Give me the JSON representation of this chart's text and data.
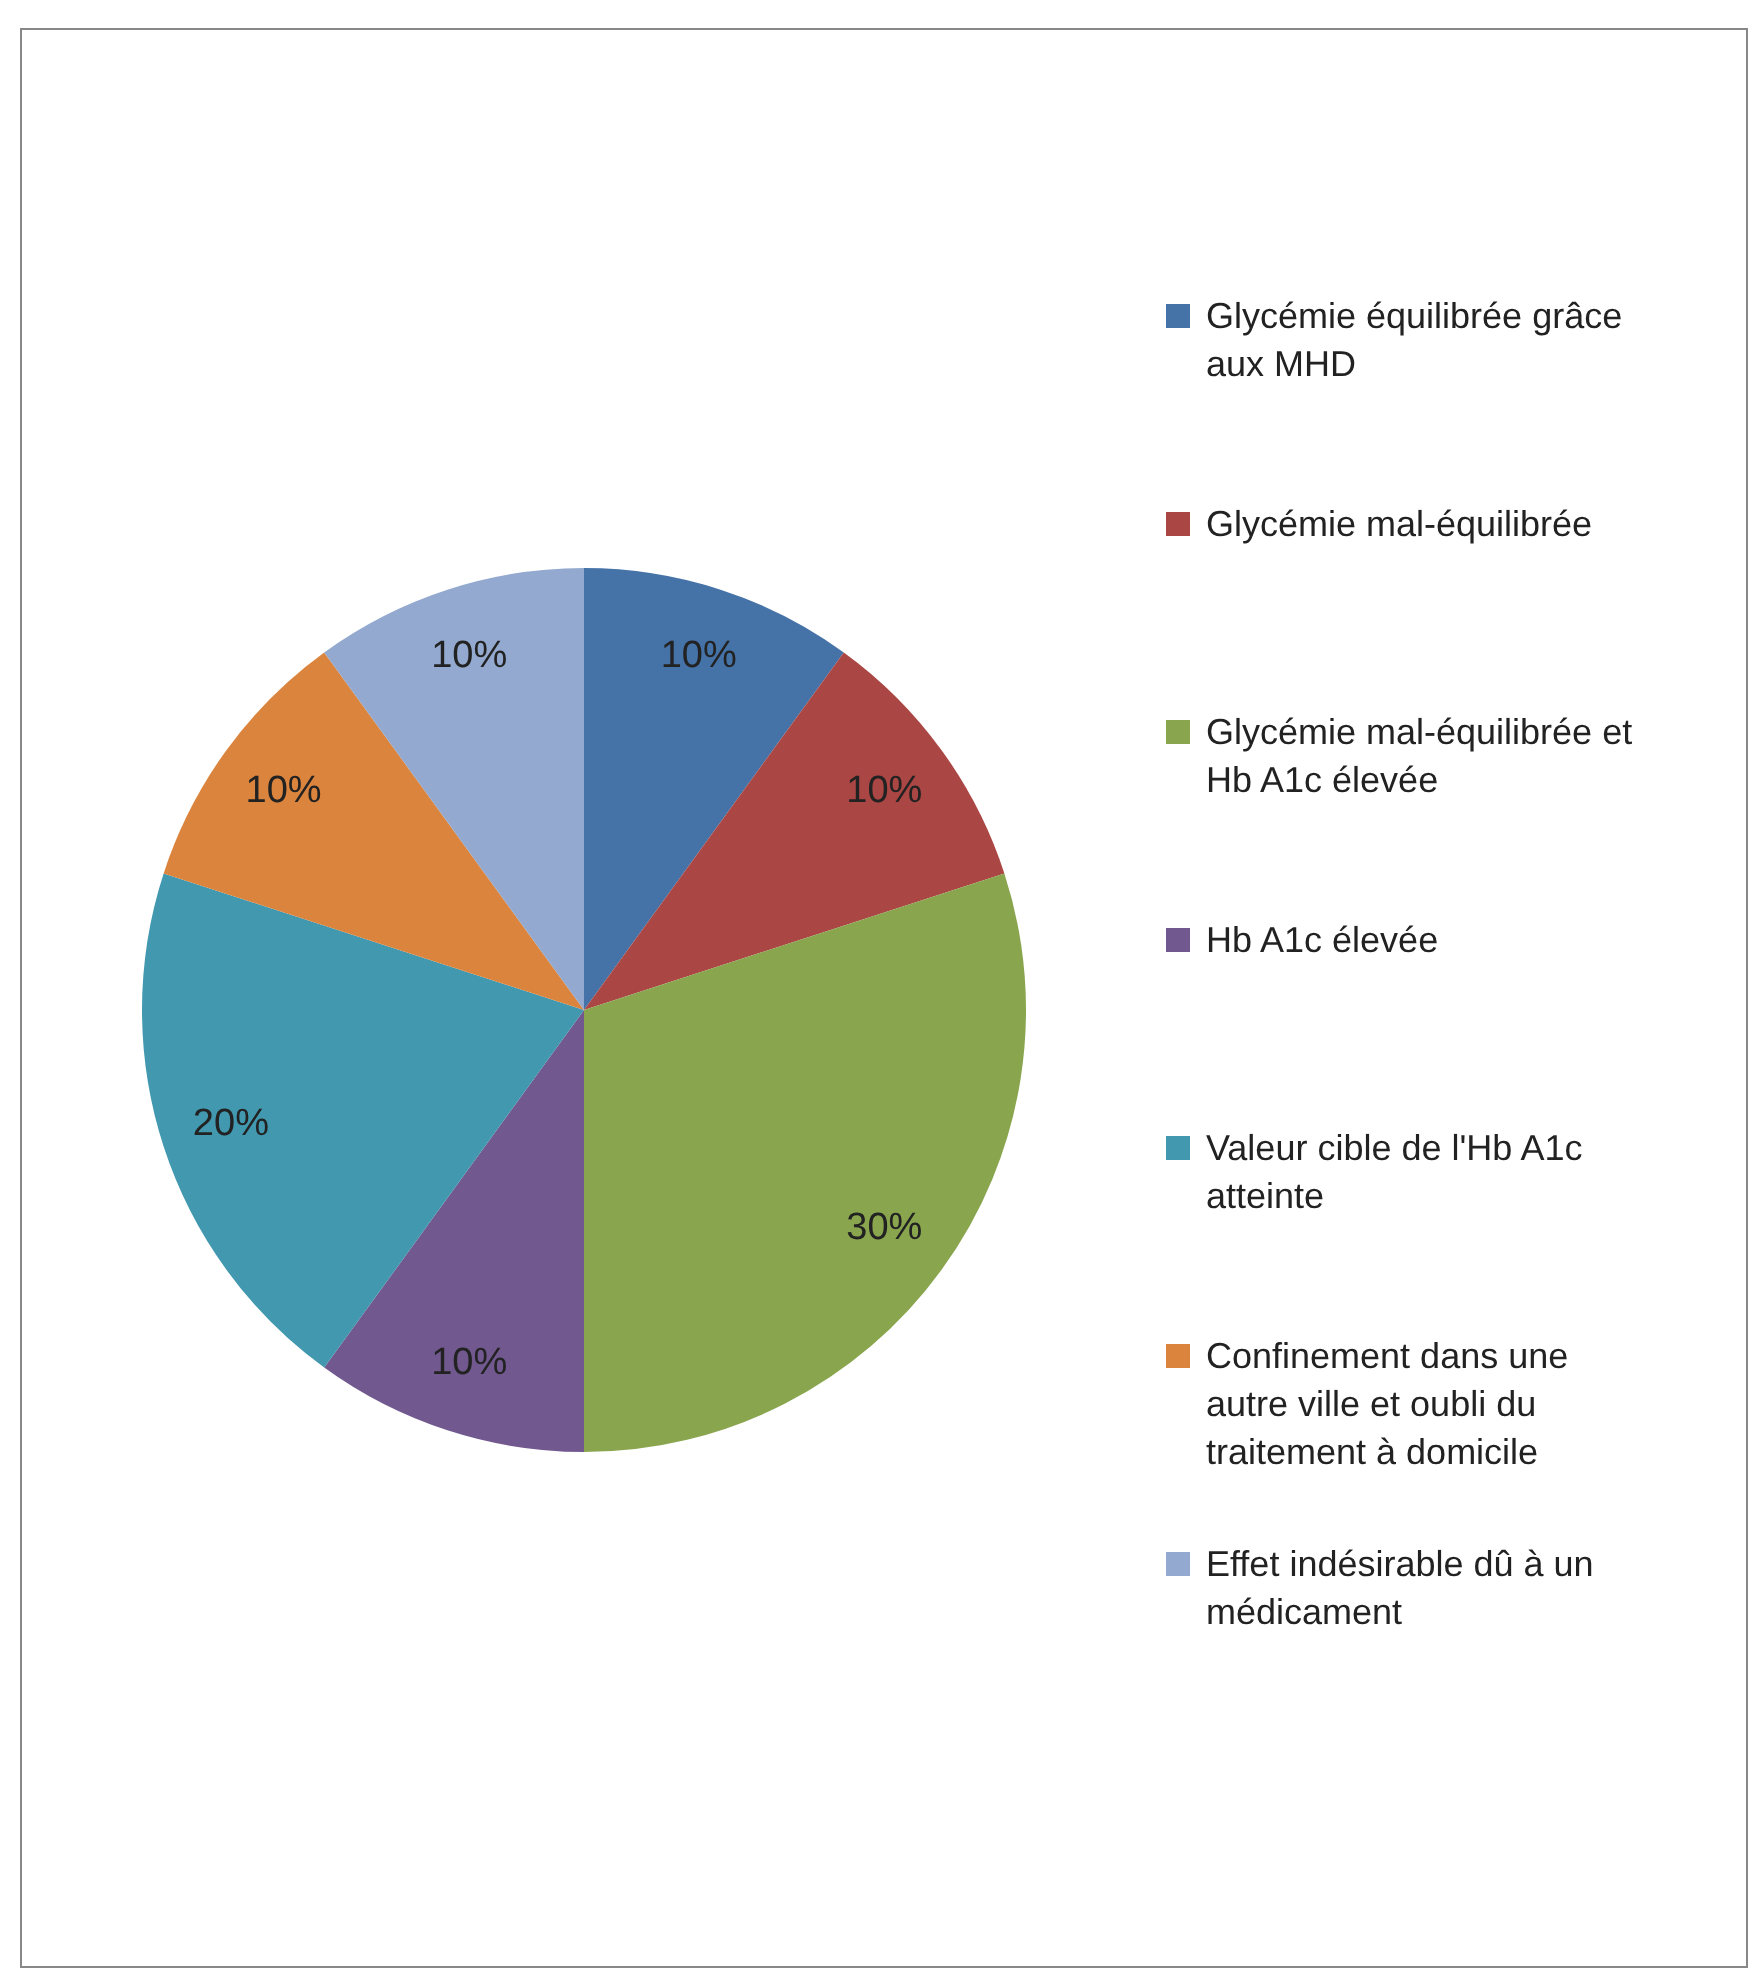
{
  "chart_data": {
    "type": "pie",
    "categories": [
      "Glycémie équilibrée grâce aux MHD",
      "Glycémie mal-équilibrée",
      "Glycémie mal-équilibrée et Hb A1c élevée",
      "Hb A1c élevée",
      "Valeur cible de l'Hb A1c atteinte",
      "Confinement dans une autre ville et oubli du traitement à domicile",
      "Effet indésirable dû à un médicament"
    ],
    "values": [
      10,
      10,
      30,
      10,
      20,
      10,
      10
    ],
    "value_labels": [
      "10%",
      "10%",
      "30%",
      "10%",
      "20%",
      "10%",
      "10%"
    ],
    "colors": [
      "#4572a7",
      "#aa4643",
      "#89a54e",
      "#71588f",
      "#4198af",
      "#db843d",
      "#93a9cf"
    ],
    "legend": "right"
  }
}
